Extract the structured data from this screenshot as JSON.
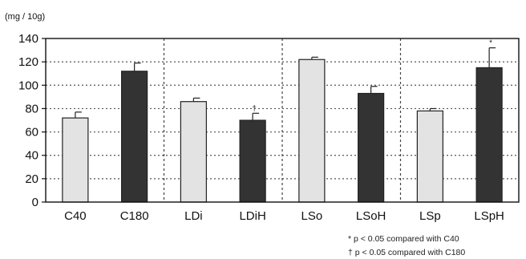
{
  "chart_data": {
    "type": "bar",
    "unit_label": "(mg / 10g)",
    "title": "",
    "xlabel": "",
    "ylabel": "",
    "ylim": [
      0,
      140
    ],
    "yticks": [
      0,
      20,
      40,
      60,
      80,
      100,
      120,
      140
    ],
    "grid": true,
    "categories": [
      "C40",
      "C180",
      "LDi",
      "LDiH",
      "LSo",
      "LSoH",
      "LSp",
      "LSpH"
    ],
    "values": [
      72,
      112,
      86,
      70,
      122,
      93,
      78,
      115
    ],
    "errors": [
      5,
      7,
      3,
      6,
      2,
      6,
      2,
      17
    ],
    "bar_colors": [
      "#e3e3e3",
      "#333333",
      "#e3e3e3",
      "#333333",
      "#e3e3e3",
      "#333333",
      "#e3e3e3",
      "#333333"
    ],
    "significance_marks": [
      "",
      "",
      "",
      "†",
      "",
      "",
      "",
      "*"
    ],
    "group_dividers_after": [
      "C180",
      "LDiH",
      "LSoH"
    ],
    "footnotes": [
      "* p < 0.05 compared with C40",
      "† p < 0.05 compared with C180"
    ]
  }
}
